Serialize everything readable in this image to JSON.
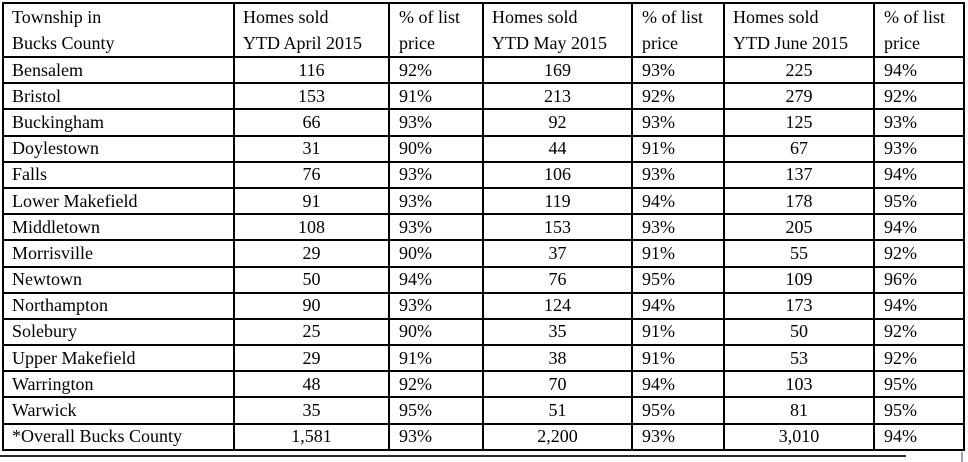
{
  "page": {
    "background": "#ffffff",
    "border_color": "#000000",
    "text_color": "#000000",
    "bottom_rule_color": "#26282e",
    "cursor_tick_color": "#97a4c4"
  },
  "table": {
    "headers": [
      {
        "line1": "Township in",
        "line2": "Bucks County"
      },
      {
        "line1": "Homes sold",
        "line2": "YTD April 2015"
      },
      {
        "line1": "% of list",
        "line2": "price"
      },
      {
        "line1": "Homes sold",
        "line2": "YTD May 2015"
      },
      {
        "line1": "% of list",
        "line2": "price"
      },
      {
        "line1": "Homes sold",
        "line2": "YTD June 2015"
      },
      {
        "line1": "% of list",
        "line2": "price"
      }
    ],
    "rows": [
      [
        "Bensalem",
        "116",
        "92%",
        "169",
        "93%",
        "225",
        "94%"
      ],
      [
        "Bristol",
        "153",
        "91%",
        "213",
        "92%",
        "279",
        "92%"
      ],
      [
        "Buckingham",
        "66",
        "93%",
        "92",
        "93%",
        "125",
        "93%"
      ],
      [
        "Doylestown",
        "31",
        "90%",
        "44",
        "91%",
        "67",
        "93%"
      ],
      [
        "Falls",
        "76",
        "93%",
        "106",
        "93%",
        "137",
        "94%"
      ],
      [
        "Lower Makefield",
        "91",
        "93%",
        "119",
        "94%",
        "178",
        "95%"
      ],
      [
        "Middletown",
        "108",
        "93%",
        "153",
        "93%",
        "205",
        "94%"
      ],
      [
        "Morrisville",
        "29",
        "90%",
        "37",
        "91%",
        "55",
        "92%"
      ],
      [
        "Newtown",
        "50",
        "94%",
        "76",
        "95%",
        "109",
        "96%"
      ],
      [
        "Northampton",
        "90",
        "93%",
        "124",
        "94%",
        "173",
        "94%"
      ],
      [
        "Solebury",
        "25",
        "90%",
        "35",
        "91%",
        "50",
        "92%"
      ],
      [
        "Upper Makefield",
        "29",
        "91%",
        "38",
        "91%",
        "53",
        "92%"
      ],
      [
        "Warrington",
        "48",
        "92%",
        "70",
        "94%",
        "103",
        "95%"
      ],
      [
        "Warwick",
        "35",
        "95%",
        "51",
        "95%",
        "81",
        "95%"
      ],
      [
        "*Overall Bucks County",
        "1,581",
        "93%",
        "2,200",
        "93%",
        "3,010",
        "94%"
      ]
    ]
  }
}
